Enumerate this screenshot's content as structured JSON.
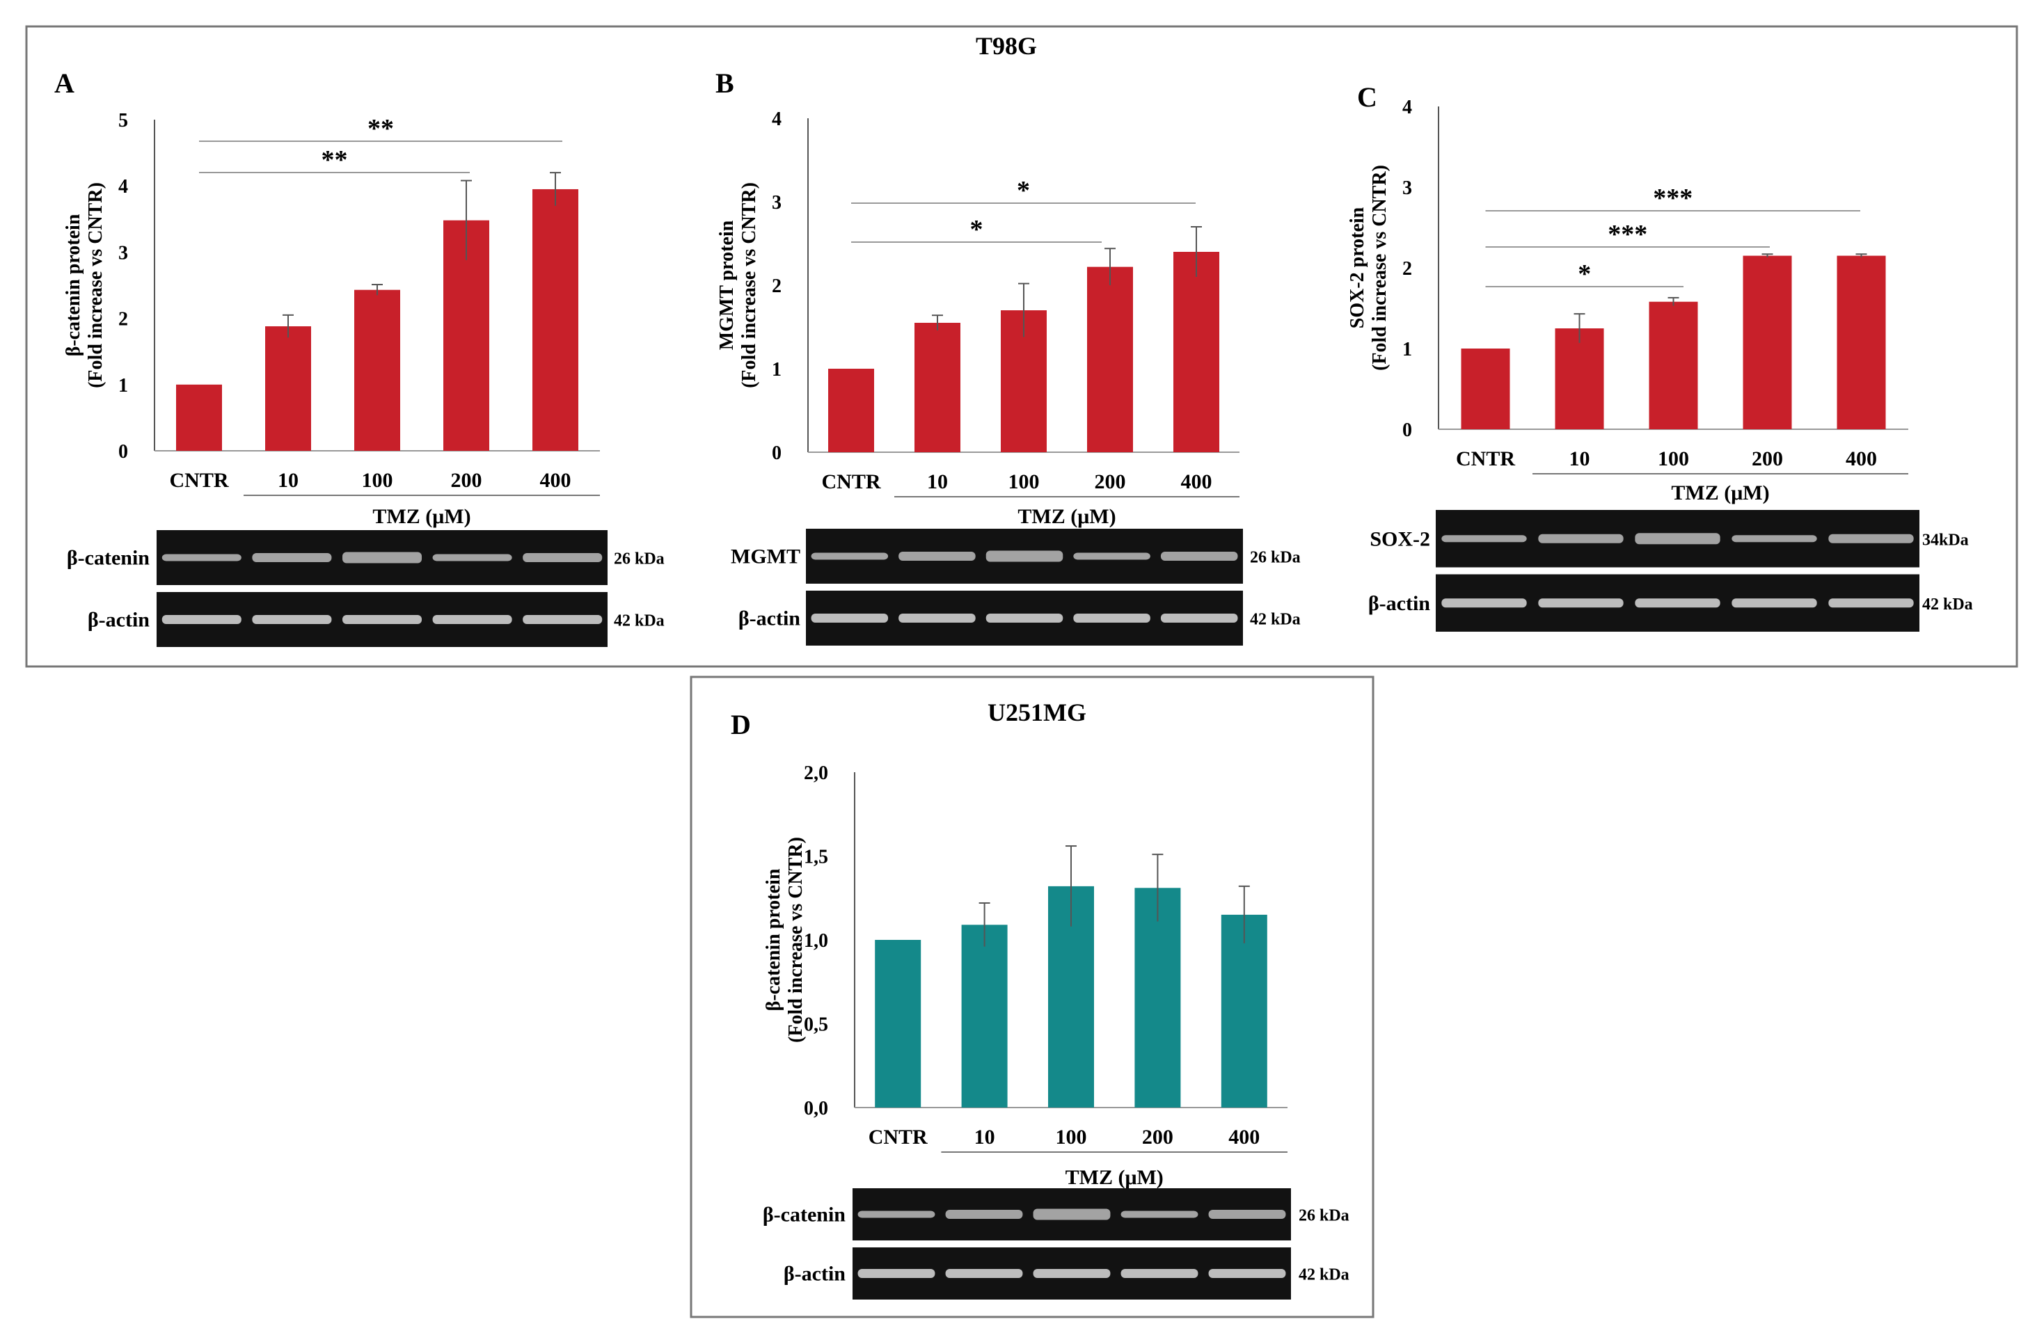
{
  "figure": {
    "top_group_title": "T98G",
    "bottom_group_title": "U251MG",
    "xgroup_label": "TMZ (μM)"
  },
  "chart_data": [
    {
      "panel": "A",
      "type": "bar",
      "cell_line": "T98G",
      "categories": [
        "CNTR",
        "10",
        "100",
        "200",
        "400"
      ],
      "values": [
        1.0,
        1.88,
        2.43,
        3.48,
        3.95
      ],
      "errors": [
        0.0,
        0.17,
        0.08,
        0.6,
        0.25
      ],
      "ylabel": "β-catenin protein",
      "ylabel2": "(Fold increase vs CNTR)",
      "xlabel": "TMZ (μM)",
      "ylim": [
        0,
        5
      ],
      "yticks": [
        0,
        1,
        2,
        3,
        4,
        5
      ],
      "ytick_labels": [
        "0",
        "1",
        "2",
        "3",
        "4",
        "5"
      ],
      "bar_color": "#c8202a",
      "significance": [
        {
          "from": "CNTR",
          "to": "400",
          "label": "**"
        },
        {
          "from": "CNTR",
          "to": "200",
          "label": "**"
        }
      ],
      "blots": [
        {
          "name": "β-catenin",
          "size": "26 kDa"
        },
        {
          "name": "β-actin",
          "size": "42 kDa"
        }
      ]
    },
    {
      "panel": "B",
      "type": "bar",
      "cell_line": "T98G",
      "categories": [
        "CNTR",
        "10",
        "100",
        "200",
        "400"
      ],
      "values": [
        1.0,
        1.55,
        1.7,
        2.22,
        2.4
      ],
      "errors": [
        0.0,
        0.09,
        0.32,
        0.22,
        0.3
      ],
      "ylabel": "MGMT protein",
      "ylabel2": "(Fold increase vs CNTR)",
      "xlabel": "TMZ (μM)",
      "ylim": [
        0,
        4
      ],
      "yticks": [
        0,
        1,
        2,
        3,
        4
      ],
      "ytick_labels": [
        "0",
        "1",
        "2",
        "3",
        "4"
      ],
      "bar_color": "#c8202a",
      "significance": [
        {
          "from": "CNTR",
          "to": "400",
          "label": "*"
        },
        {
          "from": "CNTR",
          "to": "200",
          "label": "*"
        }
      ],
      "blots": [
        {
          "name": "MGMT",
          "size": "26 kDa"
        },
        {
          "name": "β-actin",
          "size": "42 kDa"
        }
      ]
    },
    {
      "panel": "C",
      "type": "bar",
      "cell_line": "T98G",
      "categories": [
        "CNTR",
        "10",
        "100",
        "200",
        "400"
      ],
      "values": [
        1.0,
        1.25,
        1.58,
        2.15,
        2.15
      ],
      "errors": [
        0.0,
        0.18,
        0.05,
        0.02,
        0.02
      ],
      "ylabel": "SOX-2 protein",
      "ylabel2": "(Fold increase vs CNTR)",
      "xlabel": "TMZ (μM)",
      "ylim": [
        0,
        4
      ],
      "yticks": [
        0,
        1,
        2,
        3,
        4
      ],
      "ytick_labels": [
        "0",
        "1",
        "2",
        "3",
        "4"
      ],
      "bar_color": "#c8202a",
      "significance": [
        {
          "from": "CNTR",
          "to": "400",
          "label": "***"
        },
        {
          "from": "CNTR",
          "to": "200",
          "label": "***"
        },
        {
          "from": "CNTR",
          "to": "100",
          "label": "*"
        }
      ],
      "blots": [
        {
          "name": "SOX-2",
          "size": "34kDa"
        },
        {
          "name": "β-actin",
          "size": "42 kDa"
        }
      ]
    },
    {
      "panel": "D",
      "type": "bar",
      "cell_line": "U251MG",
      "categories": [
        "CNTR",
        "10",
        "100",
        "200",
        "400"
      ],
      "values": [
        1.0,
        1.09,
        1.32,
        1.31,
        1.15
      ],
      "errors": [
        0.0,
        0.13,
        0.24,
        0.2,
        0.17
      ],
      "ylabel": "β-catenin protein",
      "ylabel2": "(Fold increase vs CNTR)",
      "xlabel": "TMZ (μM)",
      "ylim": [
        0,
        2
      ],
      "yticks": [
        0,
        0.5,
        1,
        1.5,
        2
      ],
      "ytick_labels": [
        "0,0",
        "0,5",
        "1,0",
        "1,5",
        "2,0"
      ],
      "bar_color": "#14898a",
      "significance": [],
      "blots": [
        {
          "name": "β-catenin",
          "size": "26 kDa"
        },
        {
          "name": "β-actin",
          "size": "42 kDa"
        }
      ]
    }
  ]
}
